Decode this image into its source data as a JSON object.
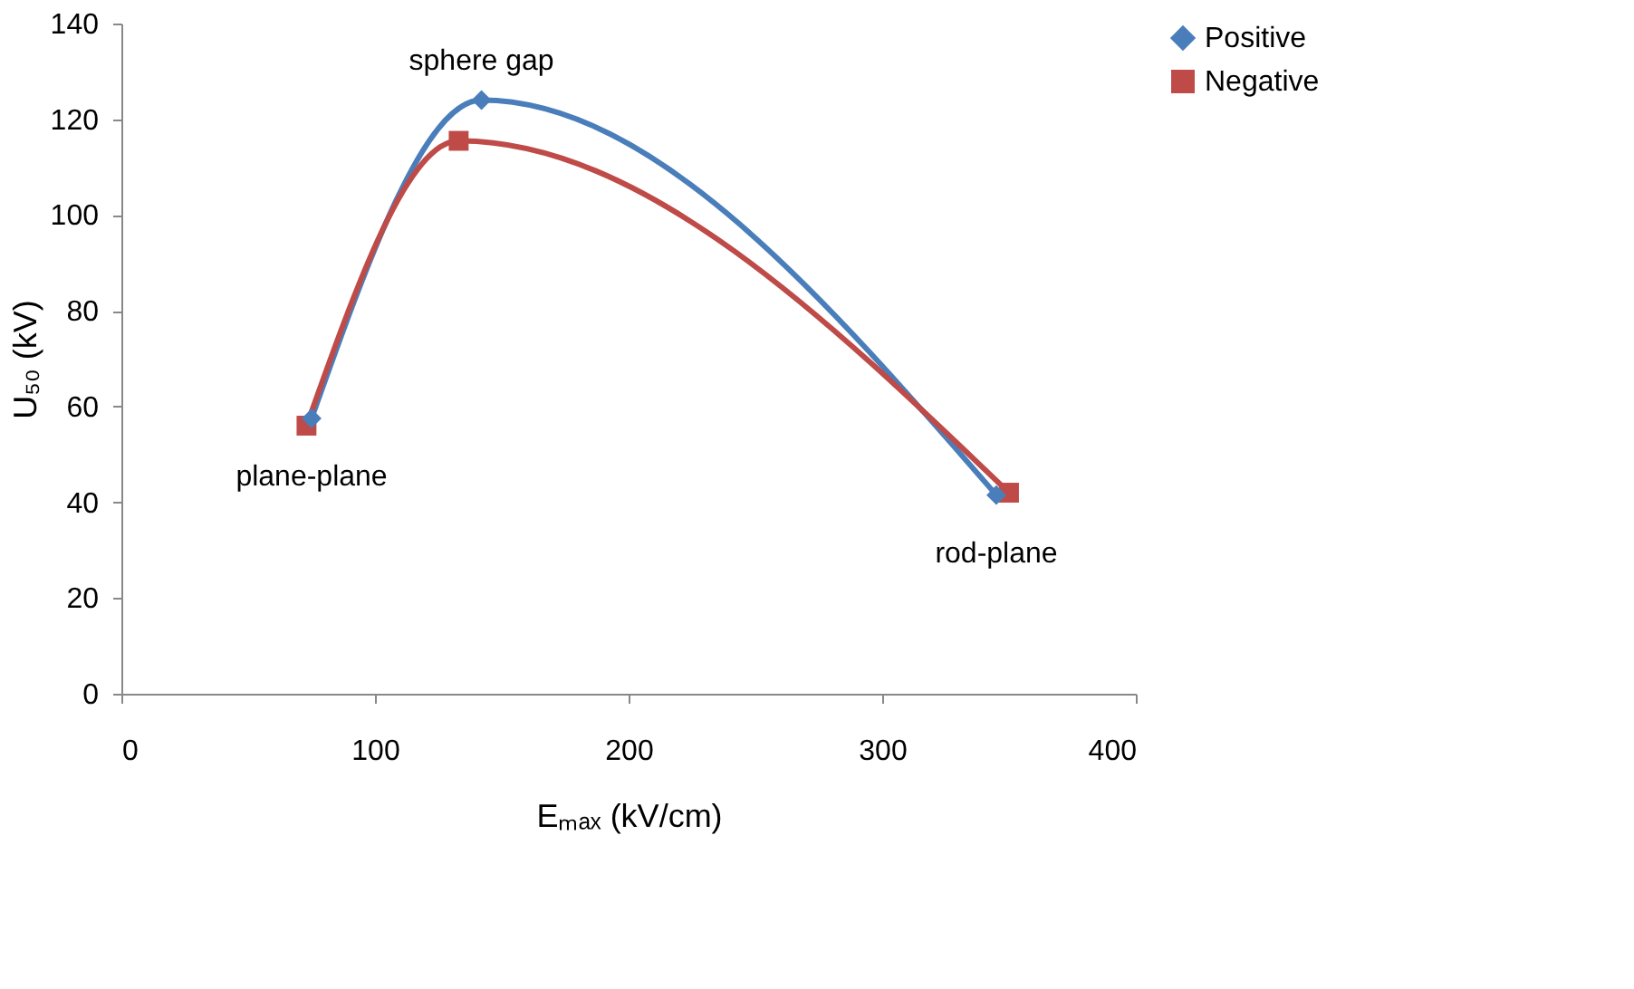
{
  "chart_data": {
    "type": "line",
    "xlabel": "Eₘₐₓ (kV/cm)",
    "ylabel": "U₅₀ (kV)",
    "xlim": [
      0,
      400
    ],
    "xticks": [
      0,
      100,
      200,
      300,
      400
    ],
    "ylim": [
      0,
      140
    ],
    "yticks": [
      0,
      20,
      40,
      60,
      80,
      100,
      120,
      140
    ],
    "grid": false,
    "legend": "right",
    "line_style": "solid",
    "series": [
      {
        "name": "Positive",
        "color": "#4a7ebb",
        "marker": "diamond",
        "x": [
          75,
          142,
          345
        ],
        "values": [
          57.5,
          124,
          41.5
        ]
      },
      {
        "name": "Negative",
        "color": "#be4b48",
        "marker": "square",
        "x": [
          73,
          133,
          350
        ],
        "values": [
          56,
          115.5,
          42
        ]
      }
    ],
    "annotations": [
      "plane-plane",
      "sphere gap",
      "rod-plane"
    ]
  }
}
